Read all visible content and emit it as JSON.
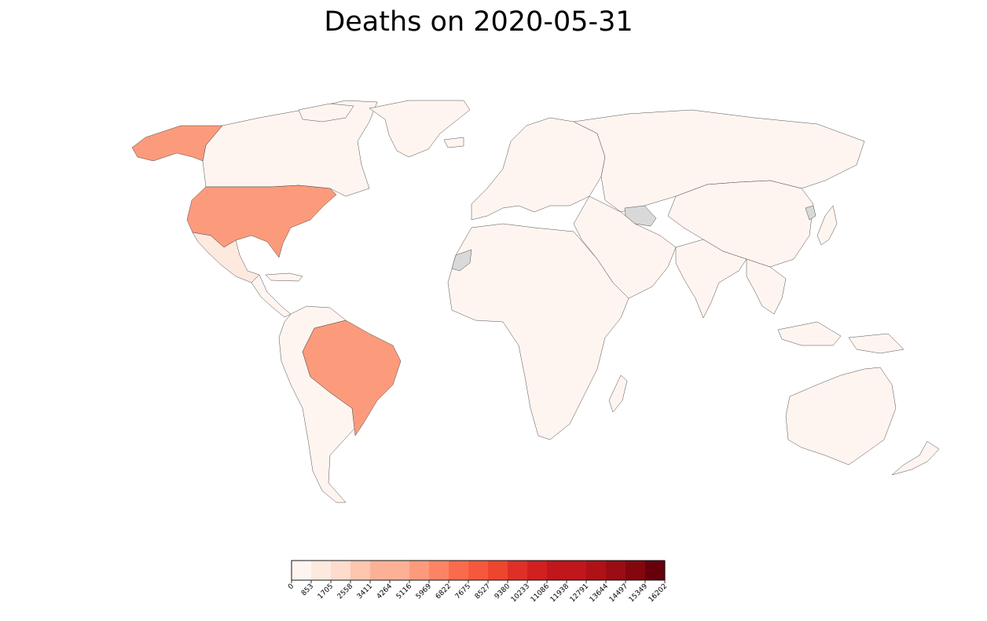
{
  "title": "Deaths on 2020-05-31",
  "colors": {
    "no_data": "#d9d9d9",
    "border": "#3a3a3a",
    "bins": [
      "#fff5f0",
      "#fee9df",
      "#fedccd",
      "#fcc6af",
      "#fcb196",
      "#fc9b7c",
      "#fc8464",
      "#fa6b4d",
      "#f4593e",
      "#ee452f",
      "#de3027",
      "#d21f20",
      "#c1161b",
      "#af1117",
      "#9b0d14",
      "#83070f",
      "#67000d"
    ]
  },
  "colorbar": {
    "label": "",
    "ticks": [
      "0",
      "853",
      "1705",
      "2558",
      "3411",
      "4264",
      "5116",
      "5969",
      "6822",
      "7675",
      "8527",
      "9380",
      "10233",
      "11086",
      "11938",
      "12791",
      "13644",
      "14497",
      "15349",
      "16202"
    ]
  },
  "map_data": {
    "metric": "Deaths",
    "date": "2020-05-31",
    "regions": [
      {
        "name": "United States",
        "bin": 5
      },
      {
        "name": "Brazil",
        "bin": 5
      },
      {
        "name": "Mexico",
        "bin": 1
      },
      {
        "name": "Canada",
        "bin": 0
      },
      {
        "name": "Greenland",
        "bin": 0
      },
      {
        "name": "Central America & Caribbean",
        "bin": 0
      },
      {
        "name": "South America (other)",
        "bin": 0
      },
      {
        "name": "Europe",
        "bin": 0
      },
      {
        "name": "Russia & Central Asia",
        "bin": 0
      },
      {
        "name": "Middle East",
        "bin": 0
      },
      {
        "name": "Africa",
        "bin": 0
      },
      {
        "name": "Madagascar",
        "bin": 0
      },
      {
        "name": "South Asia",
        "bin": 0
      },
      {
        "name": "China & Mongolia",
        "bin": 0
      },
      {
        "name": "Southeast Asia",
        "bin": 0
      },
      {
        "name": "Japan",
        "bin": 0
      },
      {
        "name": "Australia",
        "bin": 0
      },
      {
        "name": "New Zealand",
        "bin": 0
      },
      {
        "name": "Turkmenistan",
        "bin": "no_data"
      },
      {
        "name": "North Korea",
        "bin": "no_data"
      },
      {
        "name": "Western Sahara",
        "bin": "no_data"
      }
    ]
  }
}
